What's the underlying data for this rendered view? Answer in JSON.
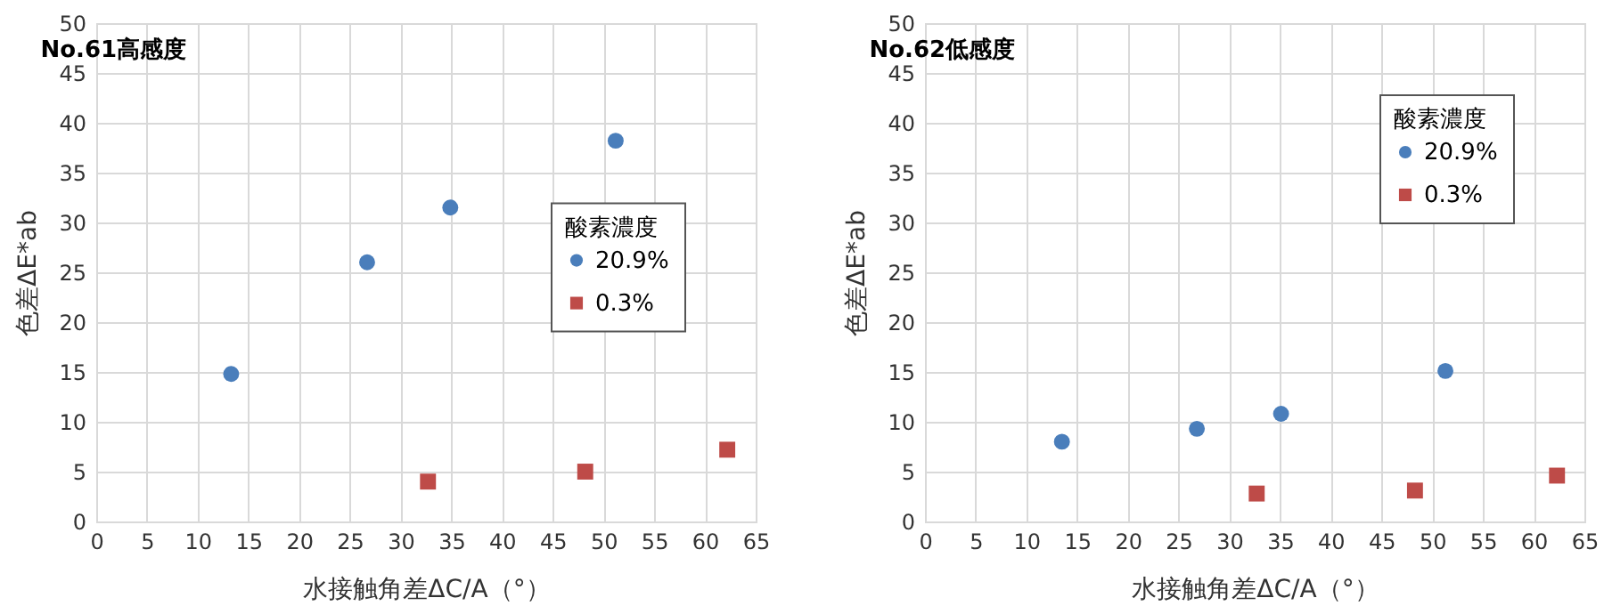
{
  "chart_data": [
    {
      "type": "scatter",
      "title": "No.61高感度",
      "xlabel": "水接触角差ΔC/A（°）",
      "ylabel": "色差ΔE*ab",
      "legend_title": "酸素濃度",
      "legend": "right",
      "grid": true,
      "xlim": [
        0,
        65
      ],
      "xticks": [
        0,
        5,
        10,
        15,
        20,
        25,
        30,
        35,
        40,
        45,
        50,
        55,
        60,
        65
      ],
      "ylim": [
        0,
        50
      ],
      "yticks": [
        0,
        5,
        10,
        15,
        20,
        25,
        30,
        35,
        40,
        45,
        50
      ],
      "series": [
        {
          "name": "20.9%",
          "color": "#4a7ebb",
          "marker": "circle",
          "x": [
            13.3,
            26.7,
            34.9,
            51.2
          ],
          "values": [
            14.8,
            26.0,
            31.5,
            38.2
          ]
        },
        {
          "name": "0.3%",
          "color": "#be4b48",
          "marker": "square",
          "x": [
            32.7,
            48.2,
            62.2
          ],
          "values": [
            4.0,
            5.0,
            7.2
          ]
        }
      ]
    },
    {
      "type": "scatter",
      "title": "No.62低感度",
      "xlabel": "水接触角差ΔC/A（°）",
      "ylabel": "色差ΔE*ab",
      "legend_title": "酸素濃度",
      "legend": "top right",
      "grid": true,
      "xlim": [
        0,
        65
      ],
      "xticks": [
        0,
        5,
        10,
        15,
        20,
        25,
        30,
        35,
        40,
        45,
        50,
        55,
        60,
        65
      ],
      "ylim": [
        0,
        50
      ],
      "yticks": [
        0,
        5,
        10,
        15,
        20,
        25,
        30,
        35,
        40,
        45,
        50
      ],
      "series": [
        {
          "name": "20.9%",
          "color": "#4a7ebb",
          "marker": "circle",
          "x": [
            13.5,
            26.8,
            35.1,
            51.3
          ],
          "values": [
            8.0,
            9.3,
            10.8,
            15.1
          ]
        },
        {
          "name": "0.3%",
          "color": "#be4b48",
          "marker": "square",
          "x": [
            32.7,
            48.3,
            62.3
          ],
          "values": [
            2.8,
            3.1,
            4.6
          ]
        }
      ]
    }
  ]
}
